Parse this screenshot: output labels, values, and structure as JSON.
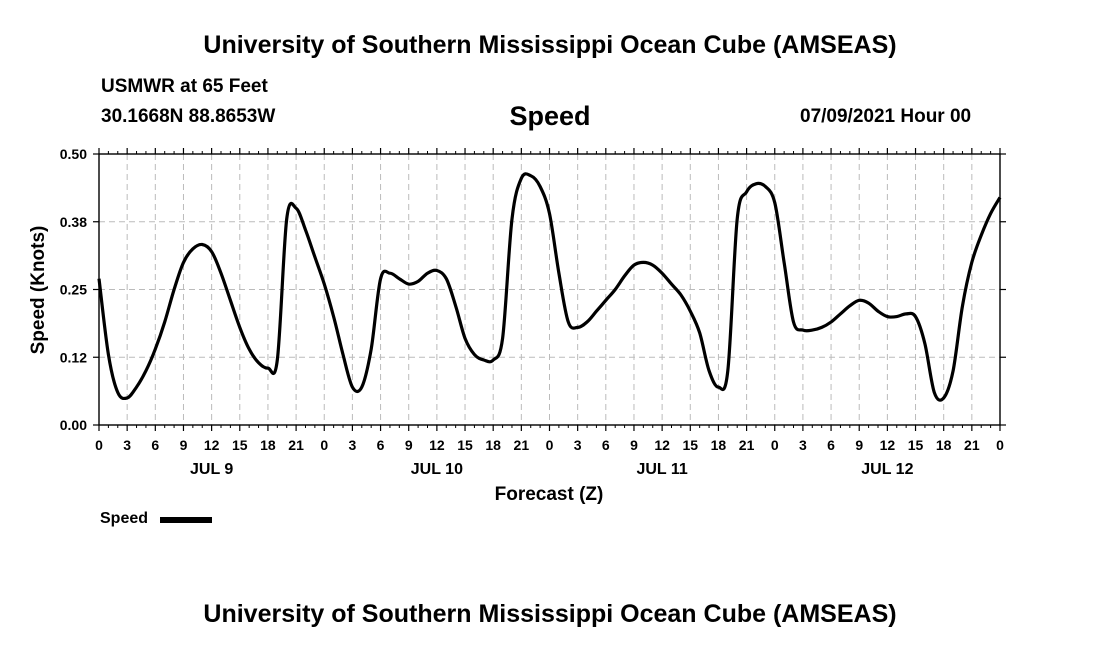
{
  "header": {
    "top_title": "University of Southern Mississippi Ocean Cube (AMSEAS)",
    "station": "USMWR at 65 Feet",
    "coords": "30.1668N  88.8653W",
    "variable": "Speed",
    "date": "07/09/2021 Hour 00"
  },
  "footer": {
    "bottom_title": "University of Southern Mississippi Ocean Cube (AMSEAS)"
  },
  "legend": {
    "label": "Speed",
    "line_color": "#000000"
  },
  "chart_data": {
    "type": "line",
    "title": "Speed",
    "xlabel": "Forecast (Z)",
    "ylabel": "Speed (Knots)",
    "ylim": [
      0,
      0.5
    ],
    "xlim": [
      0,
      96
    ],
    "yticks": [
      0.0,
      0.125,
      0.25,
      0.375,
      0.5
    ],
    "ytick_labels": [
      "0.00",
      "0.12",
      "0.25",
      "0.38",
      "0.50"
    ],
    "xticks": [
      0,
      3,
      6,
      9,
      12,
      15,
      18,
      21,
      24,
      27,
      30,
      33,
      36,
      39,
      42,
      45,
      48,
      51,
      54,
      57,
      60,
      63,
      66,
      69,
      72,
      75,
      78,
      81,
      84,
      87,
      90,
      93,
      96
    ],
    "xtick_labels": [
      "0",
      "3",
      "6",
      "9",
      "12",
      "15",
      "18",
      "21",
      "0",
      "3",
      "6",
      "9",
      "12",
      "15",
      "18",
      "21",
      "0",
      "3",
      "6",
      "9",
      "12",
      "15",
      "18",
      "21",
      "0",
      "3",
      "6",
      "9",
      "12",
      "15",
      "18",
      "21",
      "0"
    ],
    "day_labels": [
      {
        "x": 12,
        "label": "JUL 9"
      },
      {
        "x": 36,
        "label": "JUL 10"
      },
      {
        "x": 60,
        "label": "JUL 11"
      },
      {
        "x": 84,
        "label": "JUL 12"
      }
    ],
    "grid": true,
    "series": [
      {
        "name": "Speed",
        "x": [
          0,
          1,
          2,
          3,
          4,
          5,
          6,
          7,
          8,
          9,
          10,
          11,
          12,
          13,
          14,
          15,
          16,
          17,
          18,
          19,
          20,
          21,
          22,
          23,
          24,
          25,
          26,
          27,
          28,
          29,
          30,
          31,
          32,
          33,
          34,
          35,
          36,
          37,
          38,
          39,
          40,
          41,
          42,
          43,
          44,
          45,
          46,
          47,
          48,
          49,
          50,
          51,
          52,
          53,
          54,
          55,
          56,
          57,
          58,
          59,
          60,
          61,
          62,
          63,
          64,
          65,
          66,
          67,
          68,
          69,
          70,
          71,
          72,
          73,
          74,
          75,
          76,
          77,
          78,
          79,
          80,
          81,
          82,
          83,
          84,
          85,
          86,
          87,
          88,
          89,
          90,
          91,
          92,
          93,
          94,
          95,
          96
        ],
        "values": [
          0.27,
          0.13,
          0.06,
          0.05,
          0.07,
          0.1,
          0.14,
          0.19,
          0.25,
          0.3,
          0.325,
          0.333,
          0.32,
          0.28,
          0.23,
          0.18,
          0.14,
          0.115,
          0.105,
          0.12,
          0.38,
          0.4,
          0.36,
          0.31,
          0.26,
          0.2,
          0.13,
          0.07,
          0.07,
          0.14,
          0.27,
          0.28,
          0.27,
          0.26,
          0.265,
          0.28,
          0.285,
          0.27,
          0.22,
          0.16,
          0.13,
          0.12,
          0.12,
          0.16,
          0.38,
          0.455,
          0.46,
          0.44,
          0.39,
          0.28,
          0.19,
          0.18,
          0.19,
          0.21,
          0.23,
          0.25,
          0.275,
          0.295,
          0.3,
          0.295,
          0.28,
          0.26,
          0.24,
          0.21,
          0.17,
          0.1,
          0.07,
          0.1,
          0.38,
          0.43,
          0.445,
          0.44,
          0.41,
          0.3,
          0.19,
          0.175,
          0.175,
          0.18,
          0.19,
          0.205,
          0.22,
          0.23,
          0.225,
          0.21,
          0.2,
          0.2,
          0.205,
          0.2,
          0.15,
          0.06,
          0.05,
          0.1,
          0.22,
          0.3,
          0.35,
          0.39,
          0.42
        ]
      }
    ]
  }
}
